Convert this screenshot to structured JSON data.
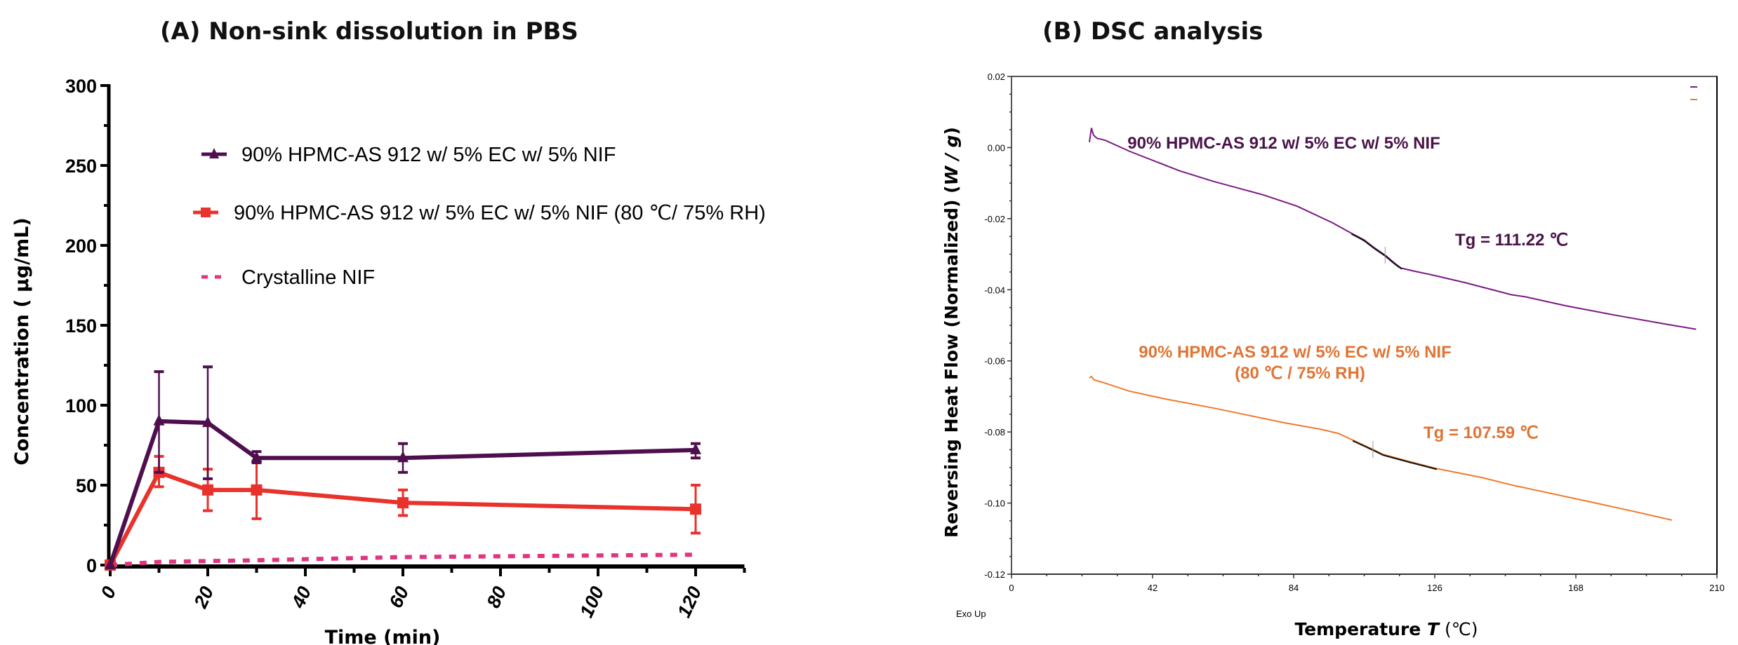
{
  "chart_data": [
    {
      "type": "line",
      "title": "(A) Non-sink dissolution in PBS",
      "xlabel": "Time (min)",
      "ylabel": "Concentration ( μg/mL)",
      "xlim": [
        0,
        130
      ],
      "ylim": [
        0,
        300
      ],
      "xticks": [
        0,
        20,
        40,
        60,
        80,
        100,
        120
      ],
      "xtick_labels": [
        "0",
        "20",
        "40",
        "60",
        "80",
        "100",
        "120"
      ],
      "yticks": [
        0,
        50,
        100,
        150,
        200,
        250,
        300
      ],
      "ytick_labels": [
        "0",
        "50",
        "100",
        "150",
        "200",
        "250",
        "300"
      ],
      "grid": false,
      "legend": "upper-center",
      "series": [
        {
          "name": "90% HPMC-AS 912 w/ 5% EC w/ 5% NIF",
          "color": "#4f0f4e",
          "marker": "triangle",
          "style": "solid",
          "x": [
            0,
            10,
            20,
            30,
            60,
            120
          ],
          "y": [
            0,
            90,
            89,
            67,
            67,
            72
          ],
          "err_low": [
            0,
            58,
            54,
            64,
            58,
            67
          ],
          "err_high": [
            0,
            121,
            124,
            71,
            76,
            76
          ]
        },
        {
          "name": "90% HPMC-AS 912 w/ 5% EC w/ 5% NIF  (80 ℃/ 75% RH)",
          "color": "#e8322b",
          "marker": "square",
          "style": "solid",
          "x": [
            0,
            10,
            20,
            30,
            60,
            120
          ],
          "y": [
            0,
            58,
            47,
            47,
            39,
            35
          ],
          "err_low": [
            0,
            49,
            34,
            29,
            31,
            20
          ],
          "err_high": [
            0,
            68,
            60,
            65,
            47,
            50
          ]
        },
        {
          "name": "Crystalline NIF",
          "color": "#e0357f",
          "marker": "none",
          "style": "dashed",
          "x": [
            0,
            10,
            20,
            30,
            60,
            120
          ],
          "y": [
            0,
            2,
            2.5,
            3,
            5,
            6.5
          ]
        }
      ]
    },
    {
      "type": "line",
      "title": "(B) DSC analysis",
      "xlabel": "Temperature T (℃)",
      "xlabel_main": "Temperature ",
      "xlabel_var": "T",
      "xlabel_unit": " (℃)",
      "ylabel": "Reversing Heat Flow (Normalized) (W / g)",
      "ylabel_main": "Reversing Heat Flow (Normalized) (",
      "ylabel_var": "W / g",
      "ylabel_end": ")",
      "xlim": [
        0,
        210
      ],
      "ylim": [
        -0.12,
        0.02
      ],
      "xticks": [
        0,
        42,
        84,
        126,
        168,
        210
      ],
      "xtick_labels": [
        "0",
        "42",
        "84",
        "126",
        "168",
        "210"
      ],
      "yticks": [
        0.02,
        0.0,
        -0.02,
        -0.04,
        -0.06,
        -0.08,
        -0.1,
        -0.12
      ],
      "ytick_labels": [
        "0.02",
        "0.00",
        "-0.02",
        "-0.04",
        "-0.06",
        "-0.08",
        "-0.10",
        "-0.12"
      ],
      "grid": false,
      "legend": "top-right",
      "corner_note": "Exo Up",
      "series": [
        {
          "name": "90% HPMC-AS 912 w/ 5% EC w/ 5% NIF",
          "color": "#7b1a84",
          "label_color": "#4a1348",
          "tg_label": "Tg = 111.22 ℃",
          "tg": 111.22,
          "x": [
            23.2,
            23.8,
            24.4,
            25.0,
            25.6,
            26.5,
            28,
            35,
            49.9,
            60,
            74.9,
            85,
            95.6,
            100,
            105,
            108,
            111.4,
            114,
            116,
            120,
            124.6,
            135,
            148.8,
            153,
            165,
            180,
            195,
            203.8
          ],
          "y": [
            0.0015,
            0.0055,
            0.0035,
            0.003,
            0.0025,
            0.0024,
            0.002,
            -0.001,
            -0.0065,
            -0.0095,
            -0.0133,
            -0.0165,
            -0.0212,
            -0.0235,
            -0.026,
            -0.0282,
            -0.0304,
            -0.0325,
            -0.0339,
            -0.0348,
            -0.0357,
            -0.038,
            -0.0414,
            -0.042,
            -0.0445,
            -0.0472,
            -0.0497,
            -0.0511
          ]
        },
        {
          "name": "90% HPMC-AS 912 w/ 5% EC w/ 5% NIF (80 ℃ / 75% RH)",
          "color": "#f07a2b",
          "label_color": "#e07434",
          "label_line1": "90% HPMC-AS 912 w/ 5% EC w/ 5% NIF",
          "label_line2": "(80 ℃ / 75% RH)",
          "tg_label": "Tg = 107.59 ℃",
          "tg": 107.59,
          "x": [
            23.2,
            23.8,
            24.4,
            25.0,
            27,
            35,
            45.7,
            60.3,
            70,
            81.2,
            91.9,
            97.3,
            103.7,
            107.6,
            110.6,
            118,
            126.6,
            140,
            148.8,
            154.3,
            170,
            185,
            196.6
          ],
          "y": [
            -0.0648,
            -0.0644,
            -0.0652,
            -0.0655,
            -0.066,
            -0.0685,
            -0.0707,
            -0.0733,
            -0.0752,
            -0.0774,
            -0.0792,
            -0.0804,
            -0.0832,
            -0.0849,
            -0.0863,
            -0.0882,
            -0.0903,
            -0.0928,
            -0.0949,
            -0.096,
            -0.0992,
            -0.1023,
            -0.1048
          ]
        }
      ]
    }
  ]
}
